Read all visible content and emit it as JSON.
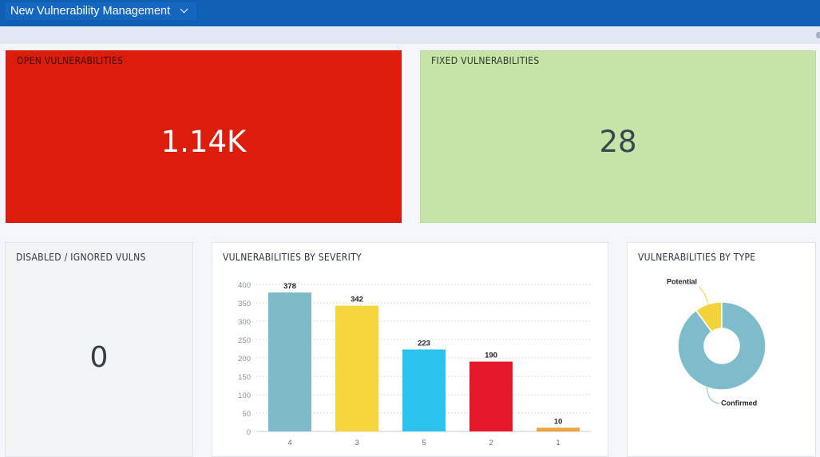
{
  "header": {
    "dashboard_name": "New Vulnerability Management"
  },
  "tiles": {
    "open": {
      "title": "OPEN VULNERABILITIES",
      "value": "1.14K",
      "color": "#dd1d0b"
    },
    "fixed": {
      "title": "FIXED VULNERABILITIES",
      "value": "28",
      "color": "#c7e4a8"
    },
    "disabled": {
      "title": "DISABLED / IGNORED VULNS",
      "value": "0"
    }
  },
  "severity_chart": {
    "title": "VULNERABILITIES BY SEVERITY",
    "chart_data": {
      "type": "bar",
      "categories": [
        "4",
        "3",
        "5",
        "2",
        "1"
      ],
      "values": [
        378,
        342,
        223,
        190,
        10
      ],
      "data_labels": [
        "378",
        "342",
        "223",
        "190",
        "10"
      ],
      "colors": [
        "#7fbac9",
        "#f5d63c",
        "#2cc3ee",
        "#e4182a",
        "#f0a03c"
      ],
      "ylim": [
        0,
        400
      ],
      "yticks": [
        "0",
        "50",
        "100",
        "150",
        "200",
        "250",
        "300",
        "350",
        "400"
      ],
      "grid": true
    }
  },
  "type_chart": {
    "title": "VULNERABILITIES BY TYPE",
    "chart_data": {
      "type": "pie",
      "labels": [
        "Potential",
        "Confirmed"
      ],
      "values": [
        10,
        90
      ],
      "colors": [
        "#f2d33b",
        "#7fbccb"
      ],
      "donut": true
    }
  }
}
